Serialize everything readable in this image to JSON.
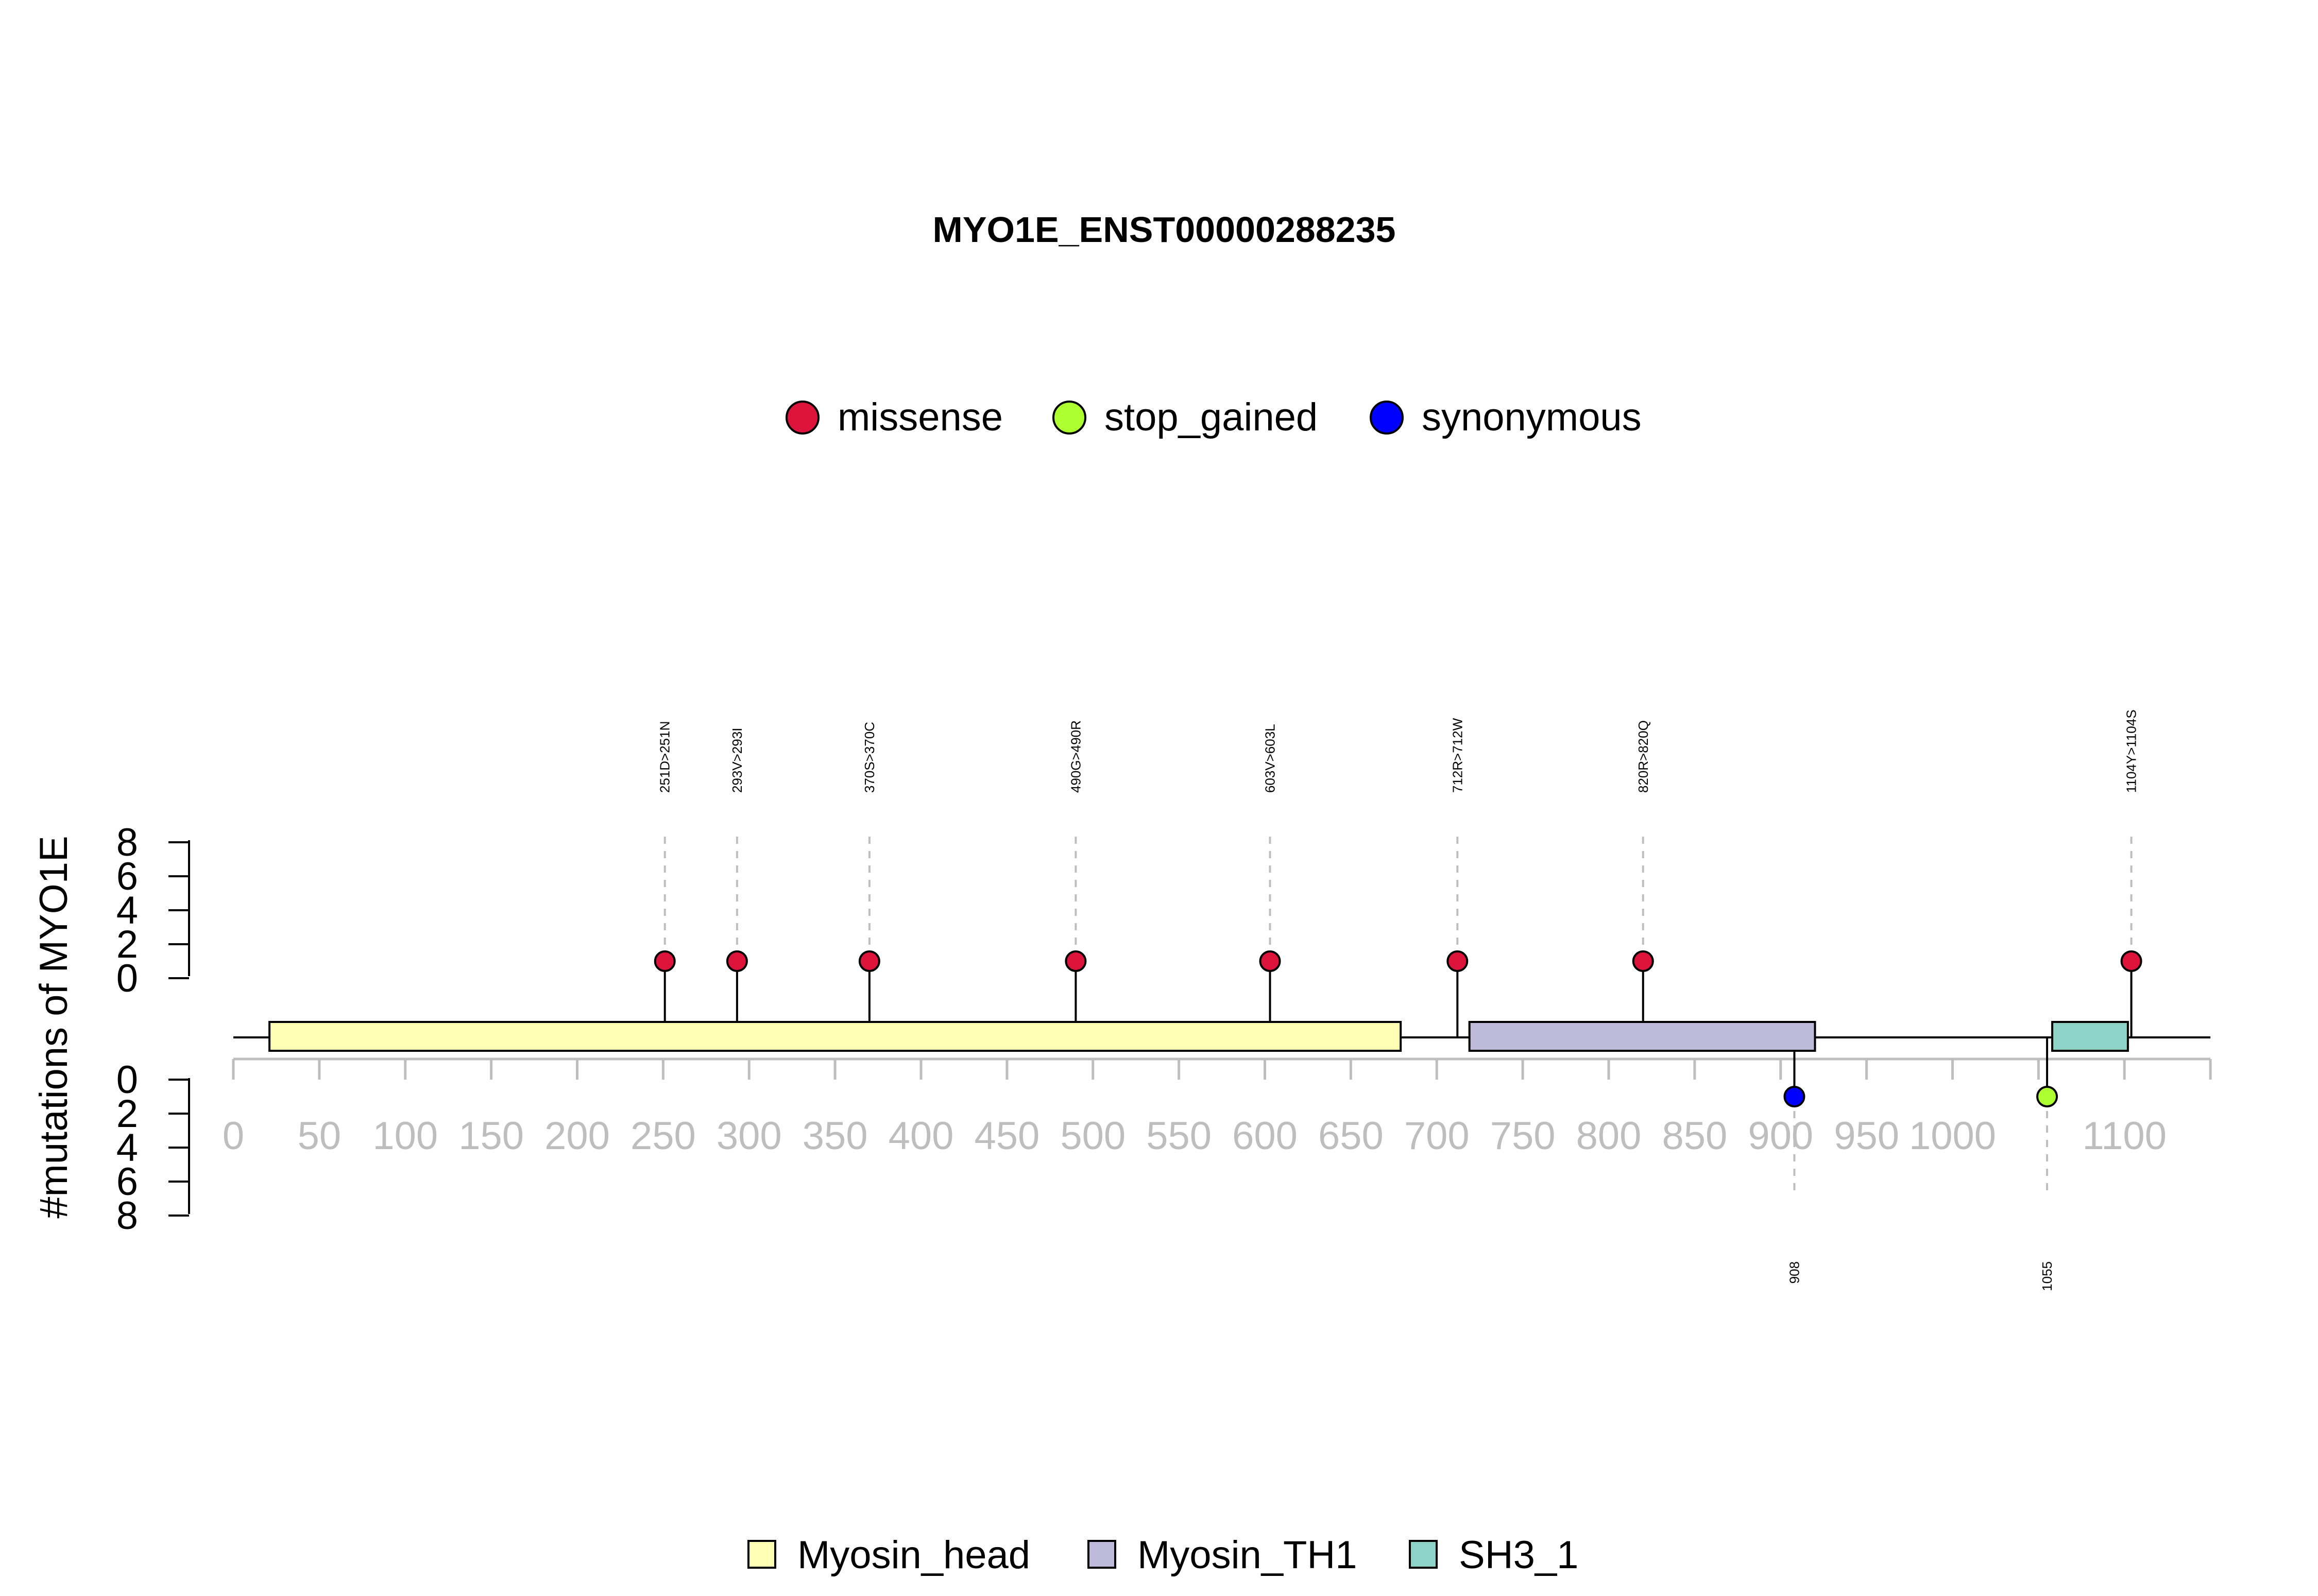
{
  "chart_data": {
    "type": "lollipop",
    "title": "MYO1E_ENST00000288235",
    "ylabel": "#mutations of MYO1E",
    "xlim": [
      0,
      1150
    ],
    "ylim_top": [
      0,
      8
    ],
    "ylim_bottom": [
      0,
      8
    ],
    "y_ticks": [
      0,
      2,
      4,
      6,
      8
    ],
    "x_ticks": [
      0,
      50,
      100,
      150,
      200,
      250,
      300,
      350,
      400,
      450,
      500,
      550,
      600,
      650,
      700,
      750,
      800,
      850,
      900,
      950,
      1000,
      1100
    ],
    "mutation_legend": [
      {
        "label": "missense",
        "color": "#DC143C"
      },
      {
        "label": "stop_gained",
        "color": "#ADFF2F"
      },
      {
        "label": "synonymous",
        "color": "#0000FF"
      }
    ],
    "domain_legend": [
      {
        "label": "Myosin_head",
        "color": "#FFFFB3"
      },
      {
        "label": "Myosin_TH1",
        "color": "#BEBADA"
      },
      {
        "label": "SH3_1",
        "color": "#8DD3C7"
      }
    ],
    "domains": [
      {
        "name": "Myosin_head",
        "start": 21,
        "end": 679,
        "color": "#FFFFB3"
      },
      {
        "name": "Myosin_TH1",
        "start": 719,
        "end": 920,
        "color": "#BEBADA"
      },
      {
        "name": "SH3_1",
        "start": 1058,
        "end": 1102,
        "color": "#8DD3C7"
      }
    ],
    "mutations_top": [
      {
        "pos": 251,
        "count": 1,
        "type": "missense",
        "label": "251D>251N"
      },
      {
        "pos": 293,
        "count": 1,
        "type": "missense",
        "label": "293V>293I"
      },
      {
        "pos": 370,
        "count": 1,
        "type": "missense",
        "label": "370S>370C"
      },
      {
        "pos": 490,
        "count": 1,
        "type": "missense",
        "label": "490G>490R"
      },
      {
        "pos": 603,
        "count": 1,
        "type": "missense",
        "label": "603V>603L"
      },
      {
        "pos": 712,
        "count": 1,
        "type": "missense",
        "label": "712R>712W"
      },
      {
        "pos": 820,
        "count": 1,
        "type": "missense",
        "label": "820R>820Q"
      },
      {
        "pos": 1104,
        "count": 1,
        "type": "missense",
        "label": "1104Y>1104S"
      }
    ],
    "mutations_bottom": [
      {
        "pos": 908,
        "count": 1,
        "type": "synonymous",
        "label": "908"
      },
      {
        "pos": 1055,
        "count": 1,
        "type": "stop_gained",
        "label": "1055"
      }
    ]
  }
}
